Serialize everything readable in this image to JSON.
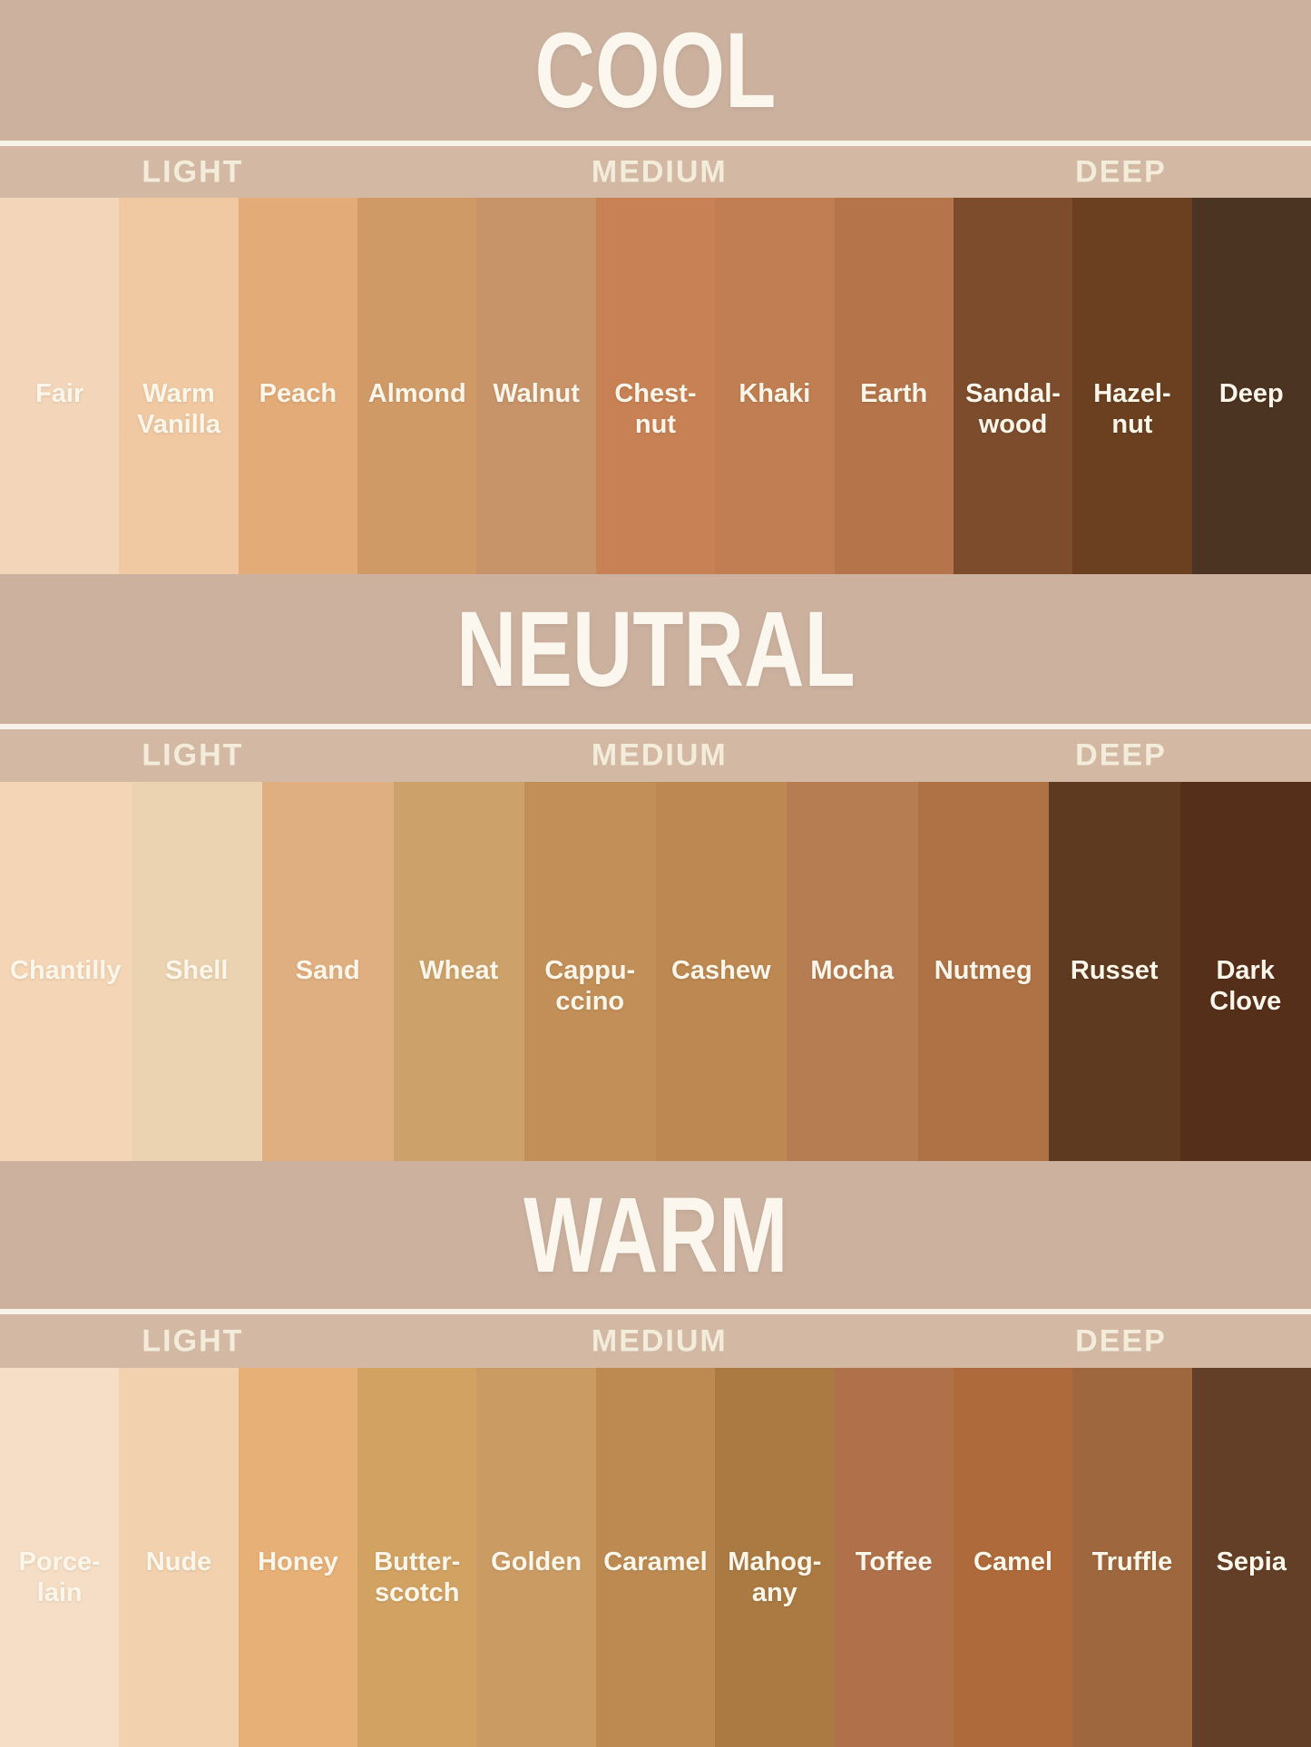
{
  "theme": {
    "title_band": "#cbb19e",
    "header_band": "#d3b9a4",
    "divider": "#f7f3ea",
    "title_text": "#fbf7ee",
    "header_text": "#f3ecdb",
    "label_text": "#fcf6ea"
  },
  "sections": [
    {
      "title": "COOL",
      "column_headers": [
        "LIGHT",
        "MEDIUM",
        "DEEP"
      ],
      "swatches": [
        {
          "name": "Fair",
          "label": "Fair",
          "color": "#f3d6b9"
        },
        {
          "name": "Warm Vanilla",
          "label": "Warm\nVanilla",
          "color": "#f0c9a3"
        },
        {
          "name": "Peach",
          "label": "Peach",
          "color": "#e2ab78"
        },
        {
          "name": "Almond",
          "label": "Almond",
          "color": "#d09a67"
        },
        {
          "name": "Walnut",
          "label": "Walnut",
          "color": "#c79369"
        },
        {
          "name": "Chestnut",
          "label": "Chest-\nnut",
          "color": "#c88154"
        },
        {
          "name": "Khaki",
          "label": "Khaki",
          "color": "#c07e52"
        },
        {
          "name": "Earth",
          "label": "Earth",
          "color": "#b5744a"
        },
        {
          "name": "Sandalwood",
          "label": "Sandal-\nwood",
          "color": "#7c4c2c"
        },
        {
          "name": "Hazelnut",
          "label": "Hazel-\nnut",
          "color": "#6a4021"
        },
        {
          "name": "Deep",
          "label": "Deep",
          "color": "#4b3421"
        }
      ]
    },
    {
      "title": "NEUTRAL",
      "column_headers": [
        "LIGHT",
        "MEDIUM",
        "DEEP"
      ],
      "swatches": [
        {
          "name": "Chantilly",
          "label": "Chantilly",
          "color": "#f4d5b5"
        },
        {
          "name": "Shell",
          "label": "Shell",
          "color": "#ebd2b1"
        },
        {
          "name": "Sand",
          "label": "Sand",
          "color": "#e0af81"
        },
        {
          "name": "Wheat",
          "label": "Wheat",
          "color": "#cda26a"
        },
        {
          "name": "Cappuccino",
          "label": "Cappu-\nccino",
          "color": "#c38f58"
        },
        {
          "name": "Cashew",
          "label": "Cashew",
          "color": "#bd8851"
        },
        {
          "name": "Mocha",
          "label": "Mocha",
          "color": "#b67c52"
        },
        {
          "name": "Nutmeg",
          "label": "Nutmeg",
          "color": "#ae7244"
        },
        {
          "name": "Russet",
          "label": "Russet",
          "color": "#5e3a20"
        },
        {
          "name": "Dark Clove",
          "label": "Dark\nClove",
          "color": "#562f1a"
        }
      ]
    },
    {
      "title": "WARM",
      "column_headers": [
        "LIGHT",
        "MEDIUM",
        "DEEP"
      ],
      "swatches": [
        {
          "name": "Porcelain",
          "label": "Porce-\nlain",
          "color": "#f5dec5"
        },
        {
          "name": "Nude",
          "label": "Nude",
          "color": "#f1d1ae"
        },
        {
          "name": "Honey",
          "label": "Honey",
          "color": "#e6b077"
        },
        {
          "name": "Butterscotch",
          "label": "Butter-\nscotch",
          "color": "#d2a263"
        },
        {
          "name": "Golden",
          "label": "Golden",
          "color": "#cb9b64"
        },
        {
          "name": "Caramel",
          "label": "Caramel",
          "color": "#bd8b52"
        },
        {
          "name": "Mahogany",
          "label": "Mahog-\nany",
          "color": "#ab7a43"
        },
        {
          "name": "Toffee",
          "label": "Toffee",
          "color": "#b0714a"
        },
        {
          "name": "Camel",
          "label": "Camel",
          "color": "#ae6a3a"
        },
        {
          "name": "Truffle",
          "label": "Truffle",
          "color": "#9e673e"
        },
        {
          "name": "Sepia",
          "label": "Sepia",
          "color": "#643f28"
        }
      ]
    }
  ]
}
